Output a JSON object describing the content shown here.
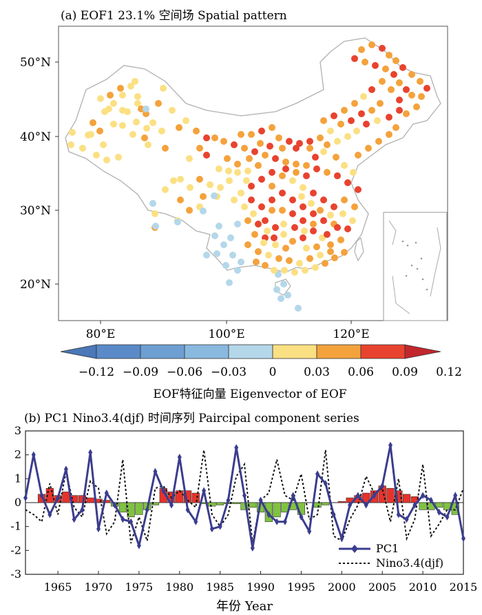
{
  "panel_a": {
    "title": "(a) EOF1 23.1% 空间场 Spatial pattern",
    "lat_labels": [
      "50°N",
      "40°N",
      "30°N",
      "20°N"
    ],
    "lon_labels": [
      "80°E",
      "100°E",
      "120°E"
    ],
    "colorbar": {
      "ticks": [
        "−0.12",
        "−0.09",
        "−0.06",
        "−0.03",
        "0",
        "0.03",
        "0.06",
        "0.09",
        "0.12"
      ],
      "title": "EOF特征向量 Eigenvector of EOF",
      "colors": [
        "#4a78b8",
        "#5a8ac8",
        "#6e9fd3",
        "#8ab9e0",
        "#b4d7ea",
        "#fbe083",
        "#f4a23c",
        "#e8432f",
        "#c1272d"
      ]
    }
  },
  "chart_data": {
    "type": "bar+line",
    "title": "(b) PC1 Nino3.4(djf) 时间序列 Paircipal component series",
    "xlabel": "年份 Year",
    "xlim": [
      1961,
      2015
    ],
    "ylim": [
      -3,
      3
    ],
    "xticks": [
      1965,
      1970,
      1975,
      1980,
      1985,
      1990,
      1995,
      2000,
      2005,
      2010,
      2015
    ],
    "yticks": [
      3,
      2,
      1,
      0,
      -1,
      -2,
      -3
    ],
    "years": [
      1961,
      1962,
      1963,
      1964,
      1965,
      1966,
      1967,
      1968,
      1969,
      1970,
      1971,
      1972,
      1973,
      1974,
      1975,
      1976,
      1977,
      1978,
      1979,
      1980,
      1981,
      1982,
      1983,
      1984,
      1985,
      1986,
      1987,
      1988,
      1989,
      1990,
      1991,
      1992,
      1993,
      1994,
      1995,
      1996,
      1997,
      1998,
      1999,
      2000,
      2001,
      2002,
      2003,
      2004,
      2005,
      2006,
      2007,
      2008,
      2009,
      2010,
      2011,
      2012,
      2013,
      2014,
      2015
    ],
    "bars": [
      0,
      0,
      0.35,
      0.6,
      0.3,
      0.45,
      0.3,
      0.3,
      0.2,
      0.15,
      0.1,
      -0.15,
      -0.4,
      -0.6,
      -0.5,
      -0.3,
      -0.1,
      0.6,
      0.45,
      0.5,
      0.5,
      0.4,
      -0.05,
      -0.15,
      -0.1,
      -0.05,
      -0.05,
      -0.3,
      -0.2,
      -0.4,
      -0.8,
      -0.6,
      -0.4,
      -0.3,
      -0.5,
      0,
      -0.2,
      -0.1,
      0,
      0.05,
      0.2,
      0.3,
      0.4,
      0.5,
      0.7,
      0.6,
      0.5,
      0.35,
      0.25,
      -0.3,
      -0.3,
      -0.2,
      -0.3,
      -0.5,
      0
    ],
    "series": [
      {
        "name": "PC1",
        "color": "#3b3d8e",
        "values": [
          0.2,
          2.0,
          0.3,
          -0.5,
          0.2,
          1.4,
          -0.7,
          -0.3,
          2.1,
          -1.1,
          0.4,
          -0.1,
          -0.7,
          -0.8,
          -1.8,
          -0.3,
          1.3,
          0.5,
          -0.1,
          1.9,
          -0.3,
          -0.8,
          0.5,
          -1.1,
          -1.0,
          0.1,
          2.3,
          0.3,
          -1.9,
          0.1,
          -0.5,
          -0.8,
          -0.8,
          0.3,
          -0.6,
          -1.2,
          1.2,
          0.8,
          -0.5,
          -1.5,
          -0.1,
          0.3,
          -0.1,
          0.3,
          0.7,
          2.4,
          -0.5,
          -0.7,
          -0.1,
          0.3,
          0.1,
          -0.4,
          -0.6,
          0.3,
          -1.5
        ]
      },
      {
        "name": "Nino3.4(djf)",
        "color": "#111111",
        "values": [
          -0.3,
          -0.5,
          -0.8,
          0.8,
          -0.5,
          1.3,
          -0.2,
          -0.6,
          0.9,
          0.6,
          -1.3,
          -0.8,
          1.8,
          -1.7,
          -0.6,
          -1.6,
          0.6,
          0.7,
          0.2,
          0.5,
          0.1,
          -0.2,
          2.2,
          -0.5,
          -1.0,
          -0.5,
          1.1,
          1.6,
          -1.7,
          0.1,
          0.4,
          1.8,
          0.3,
          0.1,
          1.2,
          -0.7,
          -0.5,
          2.2,
          -1.4,
          -1.6,
          -0.7,
          -0.1,
          1.1,
          0.4,
          0.6,
          -0.8,
          1.0,
          -1.5,
          -0.7,
          1.6,
          -1.4,
          -0.9,
          -0.3,
          -0.3,
          0.6
        ]
      }
    ],
    "legend": "bottom-right",
    "bar_colors": {
      "positive": "#e8322a",
      "negative": "#7fc241"
    }
  }
}
